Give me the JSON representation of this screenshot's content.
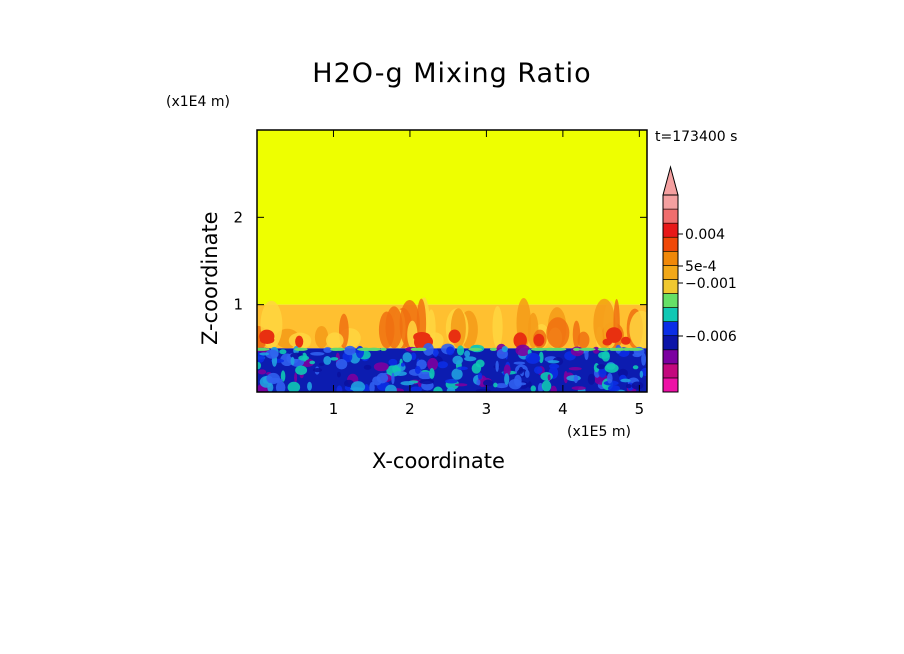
{
  "chart_data": {
    "type": "heatmap",
    "title": "H2O-g Mixing Ratio",
    "xlabel": "X-coordinate",
    "ylabel": "Z-coordinate",
    "x_unit": "(x1E5 m)",
    "y_unit": "(x1E4 m)",
    "time_label": "t=173400 s",
    "xlim": [
      0,
      5.1
    ],
    "ylim": [
      0,
      3
    ],
    "x_ticks": [
      "1",
      "2",
      "3",
      "4",
      "5"
    ],
    "y_ticks": [
      "1",
      "2"
    ],
    "x_tick_values": [
      1,
      2,
      3,
      4,
      5
    ],
    "y_tick_values": [
      1,
      2
    ],
    "colorbar": {
      "colors": [
        "#ee11a6",
        "#c3087e",
        "#7b00a0",
        "#0c14a8",
        "#0b2ee6",
        "#10c8b4",
        "#66e066",
        "#f0c830",
        "#f2a818",
        "#f08808",
        "#f04808",
        "#e81818",
        "#f06e6e",
        "#f4a0a0"
      ],
      "labels": [
        "0.004",
        "5e-4",
        "−0.001",
        "−0.006"
      ],
      "extend": "max"
    },
    "regions": [
      {
        "name": "upper",
        "z_range": [
          1.0,
          3.0
        ],
        "color": "#eeff00"
      },
      {
        "name": "boundary-layer-top",
        "z_range": [
          0.5,
          1.0
        ],
        "color": "#ffc030"
      },
      {
        "name": "surface-layer",
        "z_range": [
          0,
          0.5
        ],
        "color": "#0c1cb0"
      }
    ]
  }
}
